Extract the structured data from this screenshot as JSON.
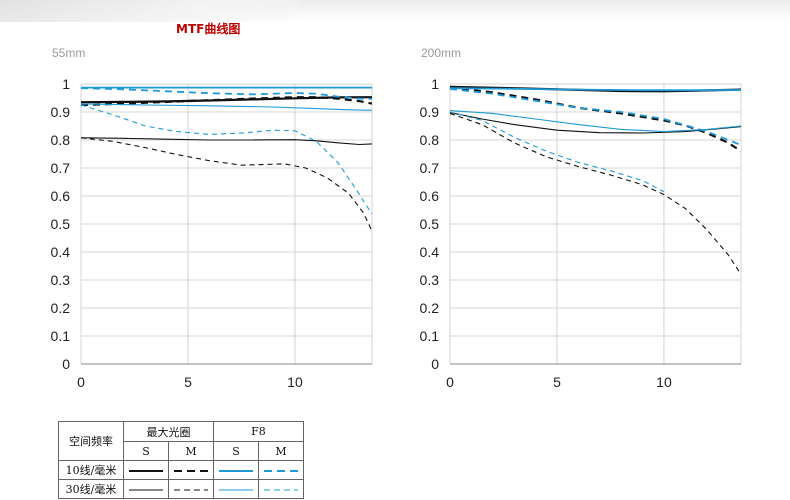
{
  "colors": {
    "wide_open": "#111111",
    "f8": "#1f9ad6",
    "grid": "#d4d4d4",
    "title": "#c00000"
  },
  "main_title": "MTF曲线图",
  "chart_data": [
    {
      "type": "line",
      "label": "55mm",
      "xlim": [
        0,
        13.6
      ],
      "ylim": [
        0,
        1
      ],
      "xticks": [
        "0",
        "5",
        "10"
      ],
      "yticks": [
        "0",
        "0.1",
        "0.2",
        "0.3",
        "0.4",
        "0.5",
        "0.6",
        "0.7",
        "0.8",
        "0.9",
        "1"
      ],
      "series": [
        {
          "group": "wide_open",
          "freq": "10",
          "mode": "S",
          "x": [
            0,
            2,
            4,
            6,
            8,
            10,
            12,
            13.6
          ],
          "y": [
            0.935,
            0.936,
            0.938,
            0.941,
            0.945,
            0.949,
            0.952,
            0.953
          ]
        },
        {
          "group": "wide_open",
          "freq": "10",
          "mode": "M",
          "x": [
            0,
            2,
            4,
            6,
            8,
            10,
            11,
            12,
            13,
            13.6
          ],
          "y": [
            0.925,
            0.93,
            0.936,
            0.942,
            0.948,
            0.953,
            0.953,
            0.948,
            0.939,
            0.93
          ]
        },
        {
          "group": "wide_open",
          "freq": "30",
          "mode": "S",
          "x": [
            0,
            2,
            4,
            6,
            8,
            10,
            11,
            12,
            13,
            13.6
          ],
          "y": [
            0.808,
            0.806,
            0.803,
            0.8,
            0.8,
            0.801,
            0.797,
            0.79,
            0.784,
            0.786
          ]
        },
        {
          "group": "wide_open",
          "freq": "30",
          "mode": "M",
          "x": [
            0,
            1.5,
            3,
            4.5,
            6,
            7.5,
            8.5,
            9.5,
            10.5,
            11.5,
            12.5,
            13.2,
            13.6
          ],
          "y": [
            0.808,
            0.795,
            0.773,
            0.748,
            0.726,
            0.71,
            0.712,
            0.715,
            0.7,
            0.665,
            0.61,
            0.54,
            0.475
          ]
        },
        {
          "group": "f8",
          "freq": "10",
          "mode": "S",
          "x": [
            0,
            3,
            6,
            9,
            12,
            13.6
          ],
          "y": [
            0.987,
            0.987,
            0.987,
            0.987,
            0.987,
            0.987
          ]
        },
        {
          "group": "f8",
          "freq": "10",
          "mode": "M",
          "x": [
            0,
            2,
            4,
            6,
            8,
            10,
            11,
            12,
            13,
            13.6
          ],
          "y": [
            0.985,
            0.981,
            0.974,
            0.967,
            0.963,
            0.968,
            0.965,
            0.955,
            0.948,
            0.947
          ]
        },
        {
          "group": "f8",
          "freq": "30",
          "mode": "S",
          "x": [
            0,
            3,
            6,
            9,
            11,
            12.5,
            13.6
          ],
          "y": [
            0.929,
            0.925,
            0.922,
            0.918,
            0.912,
            0.908,
            0.906
          ]
        },
        {
          "group": "f8",
          "freq": "30",
          "mode": "M",
          "x": [
            0,
            1.5,
            3,
            4.5,
            6,
            7.5,
            9,
            10,
            11,
            12,
            12.8,
            13.6
          ],
          "y": [
            0.925,
            0.89,
            0.85,
            0.83,
            0.82,
            0.825,
            0.835,
            0.833,
            0.795,
            0.72,
            0.63,
            0.535
          ]
        }
      ]
    },
    {
      "type": "line",
      "label": "200mm",
      "xlim": [
        0,
        13.6
      ],
      "ylim": [
        0,
        1
      ],
      "xticks": [
        "0",
        "5",
        "10"
      ],
      "yticks": [
        "0",
        "0.1",
        "0.2",
        "0.3",
        "0.4",
        "0.5",
        "0.6",
        "0.7",
        "0.8",
        "0.9",
        "1"
      ],
      "series": [
        {
          "group": "wide_open",
          "freq": "10",
          "mode": "S",
          "x": [
            0,
            3,
            6,
            8,
            10,
            12,
            13.6
          ],
          "y": [
            0.99,
            0.985,
            0.979,
            0.975,
            0.974,
            0.977,
            0.98
          ]
        },
        {
          "group": "wide_open",
          "freq": "10",
          "mode": "M",
          "x": [
            0,
            2,
            4,
            6,
            8,
            10,
            11,
            12,
            13,
            13.6
          ],
          "y": [
            0.987,
            0.97,
            0.945,
            0.915,
            0.895,
            0.87,
            0.852,
            0.825,
            0.79,
            0.76
          ]
        },
        {
          "group": "wide_open",
          "freq": "30",
          "mode": "S",
          "x": [
            0,
            1.5,
            3,
            5,
            7,
            9,
            11,
            12.5,
            13.6
          ],
          "y": [
            0.898,
            0.875,
            0.855,
            0.835,
            0.826,
            0.825,
            0.83,
            0.84,
            0.848
          ]
        },
        {
          "group": "wide_open",
          "freq": "30",
          "mode": "M",
          "x": [
            0,
            1.5,
            3,
            4.5,
            6,
            7.5,
            9,
            10,
            11,
            12,
            13,
            13.6
          ],
          "y": [
            0.895,
            0.855,
            0.79,
            0.74,
            0.705,
            0.675,
            0.64,
            0.605,
            0.555,
            0.48,
            0.39,
            0.32
          ]
        },
        {
          "group": "f8",
          "freq": "10",
          "mode": "S",
          "x": [
            0,
            3,
            6,
            9,
            12,
            13.6
          ],
          "y": [
            0.985,
            0.983,
            0.98,
            0.978,
            0.978,
            0.979
          ]
        },
        {
          "group": "f8",
          "freq": "10",
          "mode": "M",
          "x": [
            0,
            2,
            4,
            6,
            8,
            10,
            12,
            13.6
          ],
          "y": [
            0.982,
            0.965,
            0.94,
            0.915,
            0.9,
            0.875,
            0.83,
            0.782
          ]
        },
        {
          "group": "f8",
          "freq": "30",
          "mode": "S",
          "x": [
            0,
            2,
            4,
            6,
            8,
            10,
            12,
            13.6
          ],
          "y": [
            0.905,
            0.895,
            0.875,
            0.855,
            0.838,
            0.83,
            0.838,
            0.85
          ]
        },
        {
          "group": "f8",
          "freq": "30",
          "mode": "M",
          "x": [
            0,
            1.5,
            3,
            4.5,
            6,
            7.5,
            9,
            10
          ],
          "y": [
            0.9,
            0.87,
            0.81,
            0.76,
            0.72,
            0.69,
            0.655,
            0.615
          ]
        }
      ]
    }
  ],
  "legend_table": {
    "row_header": "空间频率",
    "group_wide_open": "最大光圈",
    "group_f8": "F8",
    "col_s": "S",
    "col_m": "M",
    "row_10": "10线/毫米",
    "row_30": "30线/毫米"
  }
}
